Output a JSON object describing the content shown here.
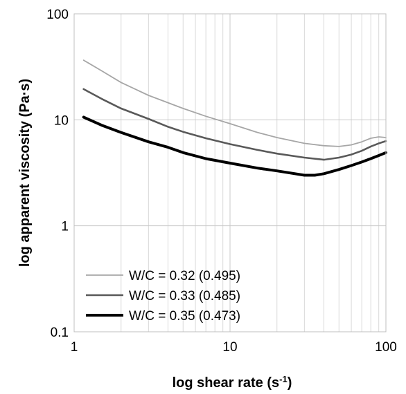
{
  "chart_data": {
    "type": "line",
    "x_scale": "log",
    "y_scale": "log",
    "xlabel": "log shear rate (s",
    "xlabel_sup": "-1",
    "xlabel_close": ")",
    "ylabel": "log apparent viscosity (Pa·s)",
    "xlim": [
      1,
      100
    ],
    "ylim": [
      0.1,
      100
    ],
    "x_ticks": [
      {
        "value": 1,
        "label": "1"
      },
      {
        "value": 10,
        "label": "10"
      },
      {
        "value": 100,
        "label": "100"
      }
    ],
    "y_ticks": [
      {
        "value": 0.1,
        "label": "0.1"
      },
      {
        "value": 1,
        "label": "1"
      },
      {
        "value": 10,
        "label": "10"
      },
      {
        "value": 100,
        "label": "100"
      }
    ],
    "grid": true,
    "legend_position": "bottom-left",
    "series": [
      {
        "name": "W/C = 0.32 (0.495)",
        "color": "#a6a6a6",
        "x": [
          1.15,
          1.5,
          2,
          3,
          4,
          5,
          7,
          10,
          15,
          20,
          30,
          40,
          50,
          60,
          70,
          80,
          90,
          100
        ],
        "y": [
          36.5,
          29,
          22.5,
          17,
          14.5,
          12.8,
          10.8,
          9.2,
          7.6,
          6.8,
          6.0,
          5.7,
          5.6,
          5.8,
          6.2,
          6.7,
          6.9,
          6.8
        ]
      },
      {
        "name": "W/C = 0.33 (0.485)",
        "color": "#595959",
        "x": [
          1.15,
          1.5,
          2,
          3,
          4,
          5,
          7,
          10,
          15,
          20,
          30,
          40,
          50,
          60,
          70,
          80,
          90,
          100
        ],
        "y": [
          19.5,
          15.8,
          12.8,
          10.2,
          8.6,
          7.7,
          6.7,
          5.9,
          5.2,
          4.8,
          4.4,
          4.2,
          4.4,
          4.7,
          5.1,
          5.6,
          6.0,
          6.3
        ]
      },
      {
        "name": "W/C = 0.35 (0.473)",
        "color": "#000000",
        "x": [
          1.15,
          1.5,
          2,
          3,
          4,
          5,
          7,
          10,
          15,
          20,
          30,
          35,
          40,
          50,
          60,
          70,
          80,
          90,
          100
        ],
        "y": [
          10.6,
          8.9,
          7.6,
          6.2,
          5.5,
          4.9,
          4.3,
          3.9,
          3.5,
          3.3,
          3.0,
          3.0,
          3.1,
          3.4,
          3.7,
          4.0,
          4.3,
          4.6,
          4.9
        ]
      }
    ]
  }
}
